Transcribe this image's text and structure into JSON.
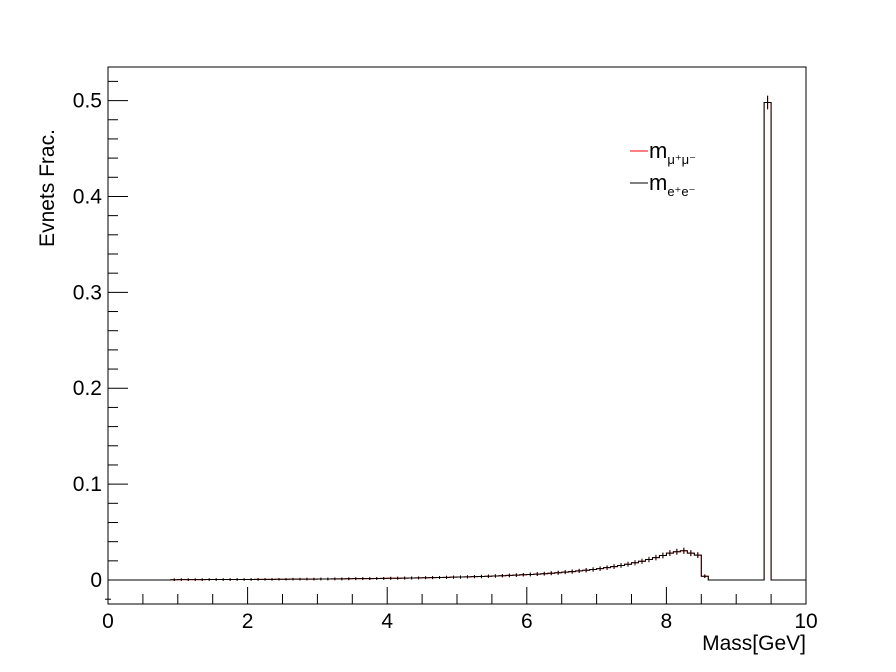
{
  "chart_data": {
    "type": "histogram",
    "xlabel": "Mass[GeV]",
    "ylabel": "Evnets Frac.",
    "xlim": [
      0,
      10
    ],
    "ylim": [
      -0.025,
      0.535
    ],
    "x_ticks": [
      {
        "value": 0,
        "label": "0"
      },
      {
        "value": 2,
        "label": "2"
      },
      {
        "value": 4,
        "label": "4"
      },
      {
        "value": 6,
        "label": "6"
      },
      {
        "value": 8,
        "label": "8"
      },
      {
        "value": 10,
        "label": "10"
      }
    ],
    "y_ticks": [
      {
        "value": 0,
        "label": "0"
      },
      {
        "value": 0.1,
        "label": "0.1"
      },
      {
        "value": 0.2,
        "label": "0.2"
      },
      {
        "value": 0.3,
        "label": "0.3"
      },
      {
        "value": 0.4,
        "label": "0.4"
      },
      {
        "value": 0.5,
        "label": "0.5"
      }
    ],
    "legend": {
      "placement": "top-right",
      "entries": [
        {
          "base": "m",
          "sub": "μ⁺μ⁻",
          "color": "#ff0000"
        },
        {
          "base": "m",
          "sub": "e⁺e⁻",
          "color": "#000000"
        }
      ]
    },
    "bin_edges_start": 0,
    "bin_width": 0.1,
    "series": [
      {
        "color": "#ff0000",
        "values": [
          0,
          0,
          0,
          0,
          0,
          0,
          0,
          0,
          0,
          0.0003,
          0.0004,
          0.0004,
          0.0004,
          0.0004,
          0.0005,
          0.0005,
          0.0005,
          0.0005,
          0.0006,
          0.0006,
          0.0006,
          0.0007,
          0.0007,
          0.0007,
          0.0008,
          0.0008,
          0.0009,
          0.0009,
          0.001,
          0.001,
          0.0011,
          0.0011,
          0.0012,
          0.0012,
          0.0013,
          0.0014,
          0.0015,
          0.0015,
          0.0016,
          0.0017,
          0.0018,
          0.0019,
          0.002,
          0.0021,
          0.0022,
          0.0024,
          0.0025,
          0.0026,
          0.0028,
          0.003,
          0.0031,
          0.0033,
          0.0035,
          0.0037,
          0.004,
          0.0042,
          0.0045,
          0.0048,
          0.0051,
          0.0055,
          0.0058,
          0.0062,
          0.0066,
          0.0071,
          0.0076,
          0.0082,
          0.0088,
          0.0095,
          0.0102,
          0.011,
          0.0119,
          0.0129,
          0.014,
          0.0152,
          0.0165,
          0.018,
          0.0196,
          0.0214,
          0.0234,
          0.0256,
          0.0281,
          0.0295,
          0.0305,
          0.028,
          0.026,
          0.004,
          0,
          0,
          0,
          0,
          0,
          0,
          0,
          0,
          0.498,
          0,
          0,
          0,
          0,
          0
        ],
        "errors": [
          0,
          0,
          0,
          0,
          0,
          0,
          0,
          0,
          0,
          0.0003,
          0.0003,
          0.0003,
          0.0003,
          0.0003,
          0.0003,
          0.0003,
          0.0003,
          0.0003,
          0.0003,
          0.0003,
          0.0003,
          0.0003,
          0.0003,
          0.0003,
          0.0003,
          0.0003,
          0.0003,
          0.0003,
          0.0003,
          0.0003,
          0.0004,
          0.0004,
          0.0004,
          0.0004,
          0.0004,
          0.0004,
          0.0004,
          0.0004,
          0.0004,
          0.0004,
          0.0005,
          0.0005,
          0.0005,
          0.0005,
          0.0005,
          0.0005,
          0.0005,
          0.0005,
          0.0006,
          0.0006,
          0.0006,
          0.0006,
          0.0006,
          0.0007,
          0.0007,
          0.0007,
          0.0007,
          0.0008,
          0.0008,
          0.0008,
          0.0009,
          0.0009,
          0.0009,
          0.001,
          0.001,
          0.001,
          0.0011,
          0.0011,
          0.0012,
          0.0012,
          0.0013,
          0.0013,
          0.0014,
          0.0014,
          0.0015,
          0.0016,
          0.0016,
          0.0017,
          0.0018,
          0.0019,
          0.002,
          0.002,
          0.0021,
          0.002,
          0.0019,
          0.0008,
          0,
          0,
          0,
          0,
          0,
          0,
          0,
          0,
          0.006,
          0,
          0,
          0,
          0,
          0
        ]
      },
      {
        "color": "#000000",
        "values": [
          0,
          0,
          0,
          0,
          0,
          0,
          0,
          0,
          0,
          0.0003,
          0.0004,
          0.0004,
          0.0004,
          0.0004,
          0.0005,
          0.0005,
          0.0005,
          0.0005,
          0.0006,
          0.0006,
          0.0006,
          0.0007,
          0.0007,
          0.0007,
          0.0008,
          0.0008,
          0.0009,
          0.0009,
          0.001,
          0.001,
          0.0011,
          0.0011,
          0.0012,
          0.0012,
          0.0013,
          0.0014,
          0.0015,
          0.0015,
          0.0016,
          0.0017,
          0.0018,
          0.0019,
          0.002,
          0.0021,
          0.0022,
          0.0024,
          0.0025,
          0.0026,
          0.0028,
          0.003,
          0.0031,
          0.0033,
          0.0035,
          0.0037,
          0.004,
          0.0042,
          0.0045,
          0.0048,
          0.0051,
          0.0055,
          0.0058,
          0.0062,
          0.0066,
          0.0071,
          0.0076,
          0.0082,
          0.0088,
          0.0095,
          0.0102,
          0.011,
          0.0119,
          0.0129,
          0.014,
          0.0152,
          0.0165,
          0.018,
          0.0196,
          0.0214,
          0.0234,
          0.0256,
          0.0281,
          0.0295,
          0.0305,
          0.028,
          0.026,
          0.004,
          0,
          0,
          0,
          0,
          0,
          0,
          0,
          0,
          0.498,
          0,
          0,
          0,
          0,
          0
        ],
        "errors": [
          0,
          0,
          0,
          0,
          0,
          0,
          0,
          0,
          0,
          0.0003,
          0.0003,
          0.0003,
          0.0003,
          0.0003,
          0.0003,
          0.0003,
          0.0003,
          0.0003,
          0.0003,
          0.0003,
          0.0003,
          0.0003,
          0.0003,
          0.0003,
          0.0003,
          0.0003,
          0.0003,
          0.0003,
          0.0003,
          0.0003,
          0.0004,
          0.0004,
          0.0004,
          0.0004,
          0.0004,
          0.0004,
          0.0004,
          0.0004,
          0.0004,
          0.0004,
          0.0005,
          0.0005,
          0.0005,
          0.0005,
          0.0005,
          0.0005,
          0.0005,
          0.0005,
          0.0006,
          0.0006,
          0.0006,
          0.0006,
          0.0006,
          0.0007,
          0.0007,
          0.0007,
          0.0007,
          0.0008,
          0.0008,
          0.0008,
          0.0009,
          0.0009,
          0.0009,
          0.001,
          0.001,
          0.001,
          0.0011,
          0.0011,
          0.0012,
          0.0012,
          0.0013,
          0.0013,
          0.0014,
          0.0014,
          0.0015,
          0.0016,
          0.0016,
          0.0017,
          0.0018,
          0.0019,
          0.002,
          0.002,
          0.0021,
          0.002,
          0.0019,
          0.0008,
          0,
          0,
          0,
          0,
          0,
          0,
          0,
          0,
          0.006,
          0,
          0,
          0,
          0,
          0
        ]
      }
    ]
  }
}
